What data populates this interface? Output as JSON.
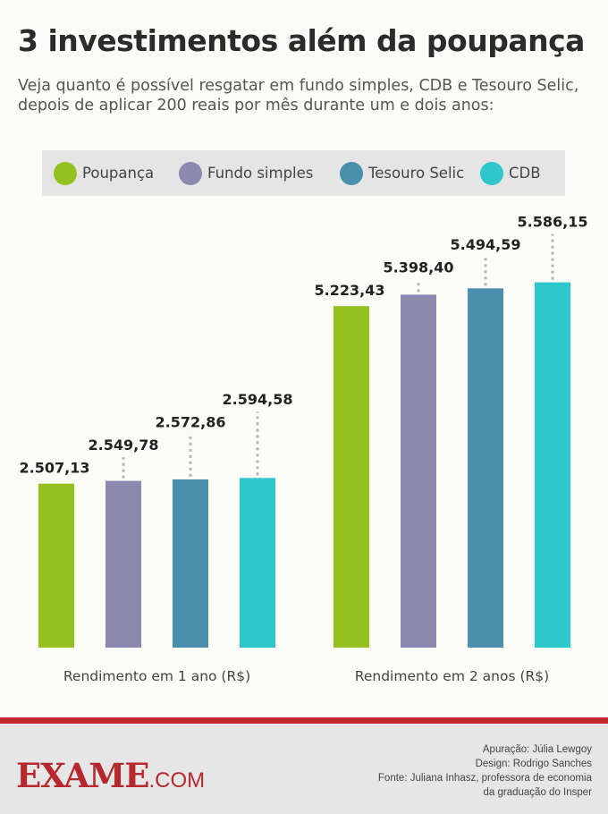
{
  "title": "3 investimentos além da poupança",
  "subtitle": "Veja quanto é possível resgatar em fundo simples, CDB e Tesouro Selic, depois de aplicar 200 reais por mês durante um e dois anos:",
  "chart_data": {
    "type": "bar",
    "categories": [
      "Rendimento em 1 ano (R$)",
      "Rendimento em 2 anos (R$)"
    ],
    "series": [
      {
        "name": "Poupança",
        "color": "#95c11f",
        "values": [
          2507.13,
          5223.43
        ],
        "labels": [
          "2.507,13",
          "5.223,43"
        ]
      },
      {
        "name": "Fundo simples",
        "color": "#8b89ad",
        "values": [
          2549.78,
          5398.4
        ],
        "labels": [
          "2.549,78",
          "5.398,40"
        ]
      },
      {
        "name": "Tesouro Selic",
        "color": "#4a90ae",
        "values": [
          2572.86,
          5494.59
        ],
        "labels": [
          "2.572,86",
          "5.494,59"
        ]
      },
      {
        "name": "CDB",
        "color": "#2ec8cc",
        "values": [
          2594.58,
          5586.15
        ],
        "labels": [
          "2.594,58",
          "5.586,15"
        ]
      }
    ],
    "legend": "top",
    "grid": false
  },
  "footer": {
    "logo": "EXAME",
    "logo_suffix": ".COM",
    "credits": [
      "Apuração: Júlia Lewgoy",
      "Design: Rodrigo Sanches",
      "Fonte: Juliana Inhasz, professora de economia",
      "da graduação do Insper"
    ]
  }
}
